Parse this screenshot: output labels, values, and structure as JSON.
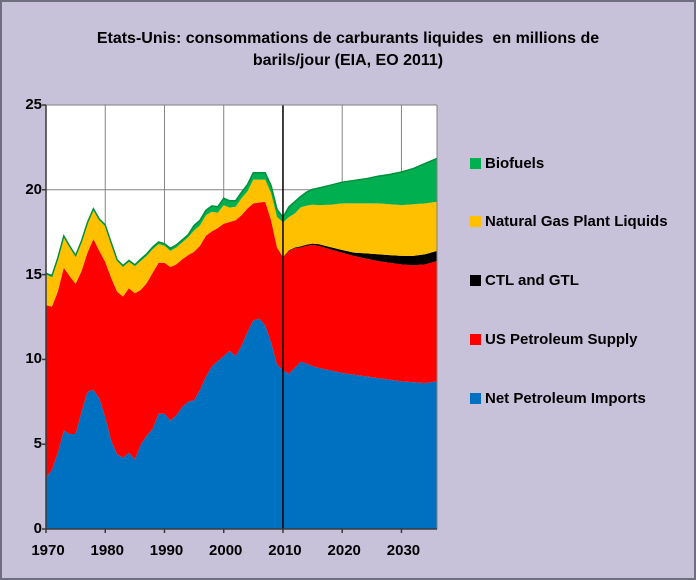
{
  "title": {
    "line1": "Etats-Unis: consommations de carburants liquides  en millions de",
    "line2": "barils/jour (EIA, EO 2011)"
  },
  "colors": {
    "background": "#C8C1DA",
    "plot_background": "#FFFFFF",
    "gridline": "#848484",
    "axis": "#3A3A3A",
    "plot_border": "#808080",
    "divider_line": "#000000",
    "biofuels_edge": "#008F3C"
  },
  "chart_data": {
    "type": "area",
    "stacked": true,
    "title": "Etats-Unis: consommations de carburants liquides en millions de barils/jour (EIA, EO 2011)",
    "xlabel": "",
    "ylabel": "millions de barils/jour",
    "ylim": [
      0,
      25
    ],
    "xlim": [
      1970,
      2036
    ],
    "yticks": [
      0,
      5,
      10,
      15,
      20,
      25
    ],
    "xticks": [
      1970,
      1980,
      1990,
      2000,
      2010,
      2020,
      2030
    ],
    "grid": true,
    "divider_year": 2010,
    "legend_position": "right",
    "x": [
      1970,
      1971,
      1972,
      1973,
      1974,
      1975,
      1976,
      1977,
      1978,
      1979,
      1980,
      1981,
      1982,
      1983,
      1984,
      1985,
      1986,
      1987,
      1988,
      1989,
      1990,
      1991,
      1992,
      1993,
      1994,
      1995,
      1996,
      1997,
      1998,
      1999,
      2000,
      2001,
      2002,
      2003,
      2004,
      2005,
      2006,
      2007,
      2008,
      2009,
      2010,
      2011,
      2012,
      2013,
      2014,
      2015,
      2016,
      2018,
      2020,
      2022,
      2024,
      2026,
      2028,
      2030,
      2032,
      2034,
      2036
    ],
    "series": [
      {
        "name": "Net Petroleum Imports",
        "color": "#0070C0",
        "values": [
          3.0,
          3.5,
          4.5,
          5.8,
          5.6,
          5.6,
          6.9,
          8.1,
          8.2,
          7.7,
          6.6,
          5.2,
          4.4,
          4.2,
          4.5,
          4.1,
          5.0,
          5.5,
          5.9,
          6.8,
          6.8,
          6.4,
          6.7,
          7.2,
          7.5,
          7.6,
          8.2,
          9.0,
          9.6,
          9.9,
          10.2,
          10.5,
          10.2,
          10.8,
          11.6,
          12.3,
          12.4,
          12.0,
          11.0,
          9.7,
          9.35,
          9.15,
          9.5,
          9.85,
          9.75,
          9.6,
          9.5,
          9.35,
          9.2,
          9.1,
          9.0,
          8.9,
          8.8,
          8.7,
          8.65,
          8.6,
          8.7
        ]
      },
      {
        "name": "US Petroleum Supply",
        "color": "#FF0000",
        "values": [
          10.2,
          9.6,
          9.5,
          9.6,
          9.3,
          8.85,
          8.3,
          8.2,
          8.9,
          8.7,
          9.15,
          9.6,
          9.6,
          9.5,
          9.7,
          9.8,
          9.1,
          9.0,
          9.2,
          8.9,
          8.9,
          9.05,
          8.9,
          8.7,
          8.65,
          8.75,
          8.5,
          8.3,
          7.95,
          7.85,
          7.8,
          7.6,
          8.0,
          7.7,
          7.3,
          6.9,
          6.85,
          7.3,
          7.2,
          6.9,
          6.65,
          7.25,
          7.05,
          6.75,
          6.95,
          7.15,
          7.2,
          7.15,
          7.1,
          7.0,
          6.95,
          6.9,
          6.9,
          6.9,
          6.9,
          7.0,
          7.1
        ]
      },
      {
        "name": "CTL and GTL",
        "color": "#000000",
        "values": [
          0,
          0,
          0,
          0,
          0,
          0,
          0,
          0,
          0,
          0,
          0,
          0,
          0,
          0,
          0,
          0,
          0,
          0,
          0,
          0,
          0,
          0,
          0,
          0,
          0,
          0,
          0,
          0,
          0,
          0,
          0,
          0,
          0,
          0,
          0,
          0,
          0,
          0,
          0,
          0,
          0.03,
          0.04,
          0.05,
          0.06,
          0.07,
          0.08,
          0.1,
          0.12,
          0.15,
          0.2,
          0.3,
          0.4,
          0.45,
          0.5,
          0.55,
          0.6,
          0.6
        ]
      },
      {
        "name": "Natural Gas Plant Liquids",
        "color": "#FFC000",
        "values": [
          1.8,
          1.75,
          1.9,
          1.8,
          1.7,
          1.6,
          1.7,
          1.7,
          1.7,
          1.8,
          2.1,
          2.0,
          1.8,
          1.75,
          1.55,
          1.6,
          1.7,
          1.6,
          1.4,
          1.1,
          1.0,
          0.95,
          1.0,
          1.0,
          1.05,
          1.25,
          1.2,
          1.2,
          1.15,
          0.9,
          1.1,
          0.85,
          0.8,
          1.0,
          1.0,
          1.4,
          1.35,
          1.3,
          1.6,
          1.8,
          2.05,
          1.95,
          2.0,
          2.3,
          2.3,
          2.3,
          2.3,
          2.5,
          2.75,
          2.9,
          2.95,
          3.0,
          3.0,
          3.0,
          3.05,
          3.0,
          2.9
        ]
      },
      {
        "name": "Biofuels",
        "color": "#00B050",
        "values": [
          0.08,
          0.08,
          0.08,
          0.08,
          0.08,
          0.08,
          0.08,
          0.08,
          0.08,
          0.08,
          0.08,
          0.08,
          0.08,
          0.08,
          0.08,
          0.08,
          0.12,
          0.12,
          0.12,
          0.12,
          0.12,
          0.15,
          0.15,
          0.15,
          0.15,
          0.3,
          0.3,
          0.3,
          0.35,
          0.35,
          0.4,
          0.4,
          0.35,
          0.35,
          0.4,
          0.4,
          0.4,
          0.4,
          0.45,
          0.45,
          0.3,
          0.6,
          0.7,
          0.65,
          0.8,
          0.9,
          1.0,
          1.15,
          1.25,
          1.35,
          1.45,
          1.6,
          1.75,
          1.95,
          2.1,
          2.35,
          2.55
        ]
      }
    ],
    "legend": [
      {
        "label": "Biofuels",
        "color": "#00B050"
      },
      {
        "label": "Natural Gas Plant Liquids",
        "color": "#FFC000"
      },
      {
        "label": "CTL and GTL",
        "color": "#000000"
      },
      {
        "label": "US Petroleum Supply",
        "color": "#FF0000"
      },
      {
        "label": "Net Petroleum Imports",
        "color": "#0070C0"
      }
    ]
  }
}
